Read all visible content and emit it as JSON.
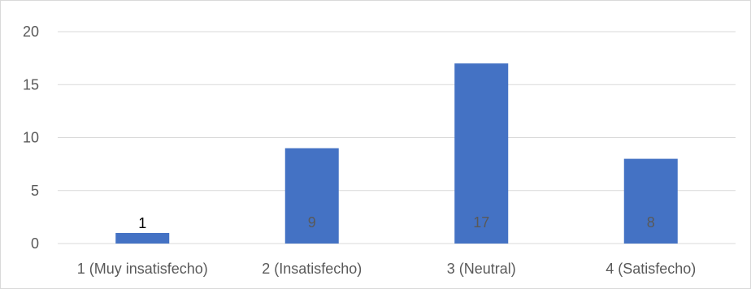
{
  "chart_data": {
    "type": "bar",
    "title": "",
    "xlabel": "",
    "ylabel": "",
    "categories": [
      "1 (Muy insatisfecho)",
      "2 (Insatisfecho)",
      "3 (Neutral)",
      "4 (Satisfecho)"
    ],
    "values": [
      1,
      9,
      17,
      8
    ],
    "data_labels": [
      "1",
      "9",
      "17",
      "8"
    ],
    "ylim": [
      0,
      20
    ],
    "yticks": [
      0,
      5,
      10,
      15,
      20
    ],
    "ytick_labels": [
      "0",
      "5",
      "10",
      "15",
      "20"
    ],
    "grid": true,
    "legend": "none",
    "bar_color": "#4472c4",
    "gridline_color": "#d9d9d9",
    "tick_label_color": "#595959",
    "data_label_color_inside": "#595959",
    "data_label_color_outside": "#000000"
  }
}
